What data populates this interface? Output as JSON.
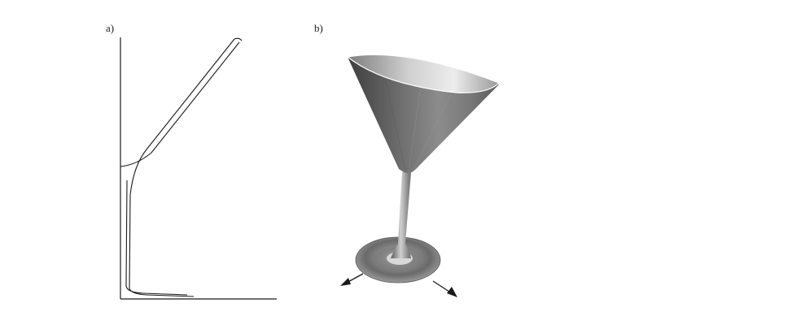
{
  "panels": {
    "a": {
      "label": "a)"
    },
    "b": {
      "label": "b)"
    }
  },
  "colors": {
    "background": "#ffffff",
    "outline": "#1a1a1a",
    "glass_dark": "#4a4a4a",
    "glass_mid": "#8a8a8a",
    "glass_light": "#d9d9d9"
  },
  "icons": {
    "left_arrow": "arrow-down-left-icon",
    "right_arrow": "arrow-down-right-icon"
  }
}
